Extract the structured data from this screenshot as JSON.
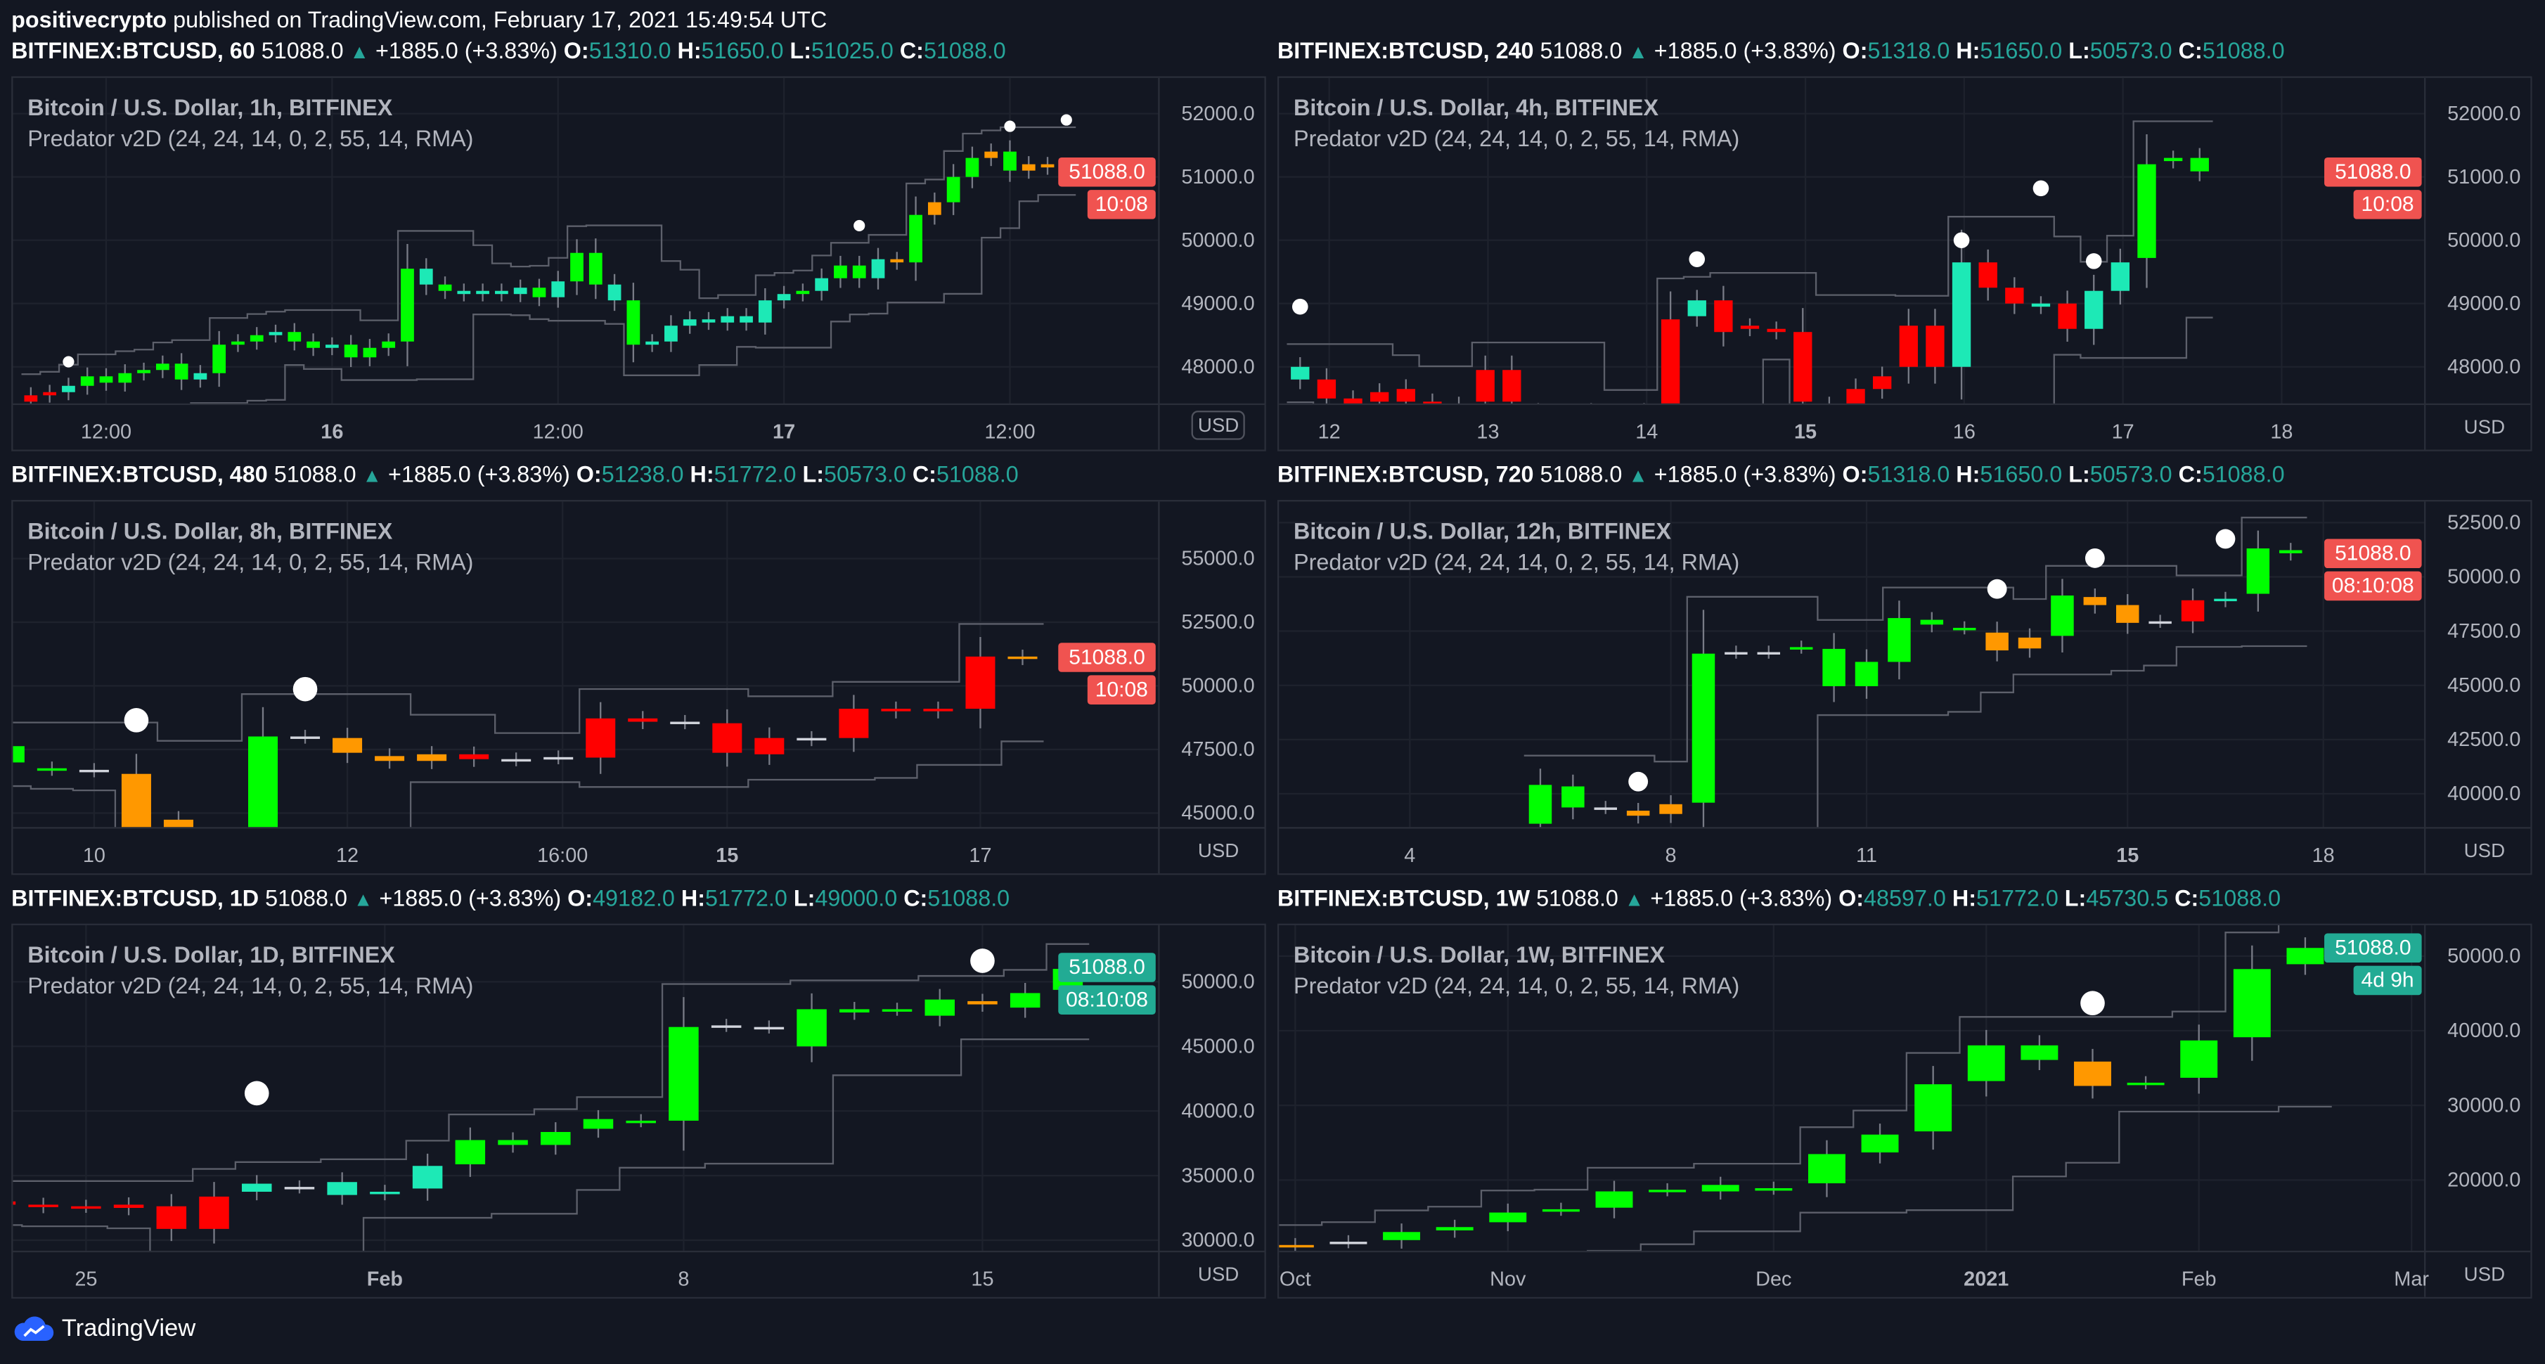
{
  "header": {
    "user": "positivecrypto",
    "published": " published on TradingView.com, February 17, 2021 15:49:54 UTC"
  },
  "footer": {
    "brand": "TradingView"
  },
  "colors": {
    "g": "#00ff00",
    "t": "#1de9b6",
    "o": "#ff9800",
    "r": "#ff0000",
    "w": "#d1d4dc",
    "up": "#26a69a",
    "badge_red": "#f05350",
    "badge_teal": "#22ab94"
  },
  "charts": [
    {
      "symbol": "BITFINEX:BTCUSD, 60",
      "last": "51088.0",
      "change": "+1885.0 (+3.83%)",
      "o": "51310.0",
      "h": "51650.0",
      "l": "51025.0",
      "c": "51088.0",
      "title": "Bitcoin / U.S. Dollar, 1h, BITFINEX",
      "indicator": "Predator v2D (24, 24, 14, 0, 2, 55, 14, RMA)",
      "unit": "USD",
      "price_label": "51088.0",
      "countdown": "10:08",
      "badge": "red",
      "last_price": 51088,
      "ylim": [
        47410,
        52564
      ],
      "y_ticks": [
        "48000.0",
        "49000.0",
        "50000.0",
        "51000.0",
        "52000.0"
      ],
      "x_ticks": [
        {
          "idx": 4,
          "label": "12:00"
        },
        {
          "idx": 16,
          "label": "16",
          "bold": true
        },
        {
          "idx": 28,
          "label": "12:00"
        },
        {
          "idx": 40,
          "label": "17",
          "bold": true
        },
        {
          "idx": 52,
          "label": "12:00"
        }
      ],
      "first_open": 47450,
      "closes": [
        47550,
        47600,
        47700,
        47850,
        47750,
        47900,
        47950,
        48050,
        47800,
        47900,
        48350,
        48400,
        48500,
        48550,
        48400,
        48300,
        48350,
        48150,
        48300,
        48400,
        49550,
        49300,
        49200,
        49150,
        49200,
        49150,
        49250,
        49100,
        49350,
        49800,
        49300,
        49050,
        48350,
        48400,
        48650,
        48750,
        48700,
        48800,
        48700,
        49050,
        49150,
        49200,
        49400,
        49600,
        49400,
        49700,
        49650,
        50400,
        50600,
        51000,
        51300,
        51400,
        51100,
        51200,
        51150,
        51088
      ],
      "close_colors": "rrtggggggtgggtggtggggtgttttgtggtgttttttttgtggtogoggogoooo",
      "dots": [
        [
          2,
          48080
        ],
        [
          44,
          50230
        ],
        [
          52,
          51800
        ],
        [
          55,
          51900
        ]
      ]
    },
    {
      "symbol": "BITFINEX:BTCUSD, 240",
      "last": "51088.0",
      "change": "+1885.0 (+3.83%)",
      "o": "51318.0",
      "h": "51650.0",
      "l": "50573.0",
      "c": "51088.0",
      "title": "Bitcoin / U.S. Dollar, 4h, BITFINEX",
      "indicator": "Predator v2D (24, 24, 14, 0, 2, 55, 14, RMA)",
      "unit": "USD",
      "price_label": "51088.0",
      "countdown": "10:08",
      "badge": "red",
      "last_price": 51088,
      "ylim": [
        47410,
        52564
      ],
      "y_ticks": [
        "48000.0",
        "49000.0",
        "50000.0",
        "51000.0",
        "52000.0"
      ],
      "x_ticks": [
        {
          "idx": 1.1,
          "label": "12"
        },
        {
          "idx": 7.1,
          "label": "13"
        },
        {
          "idx": 13.1,
          "label": "14"
        },
        {
          "idx": 19.1,
          "label": "15",
          "bold": true
        },
        {
          "idx": 25.1,
          "label": "16"
        },
        {
          "idx": 31.1,
          "label": "17"
        },
        {
          "idx": 37.1,
          "label": "18"
        }
      ],
      "candles": [
        [
          47800,
          48000,
          "t"
        ],
        [
          47800,
          47500,
          "r"
        ],
        [
          47500,
          47400,
          "r"
        ],
        [
          47600,
          47450,
          "r"
        ],
        [
          47650,
          47450,
          "r"
        ],
        [
          47450,
          47350,
          "r"
        ],
        [
          47400,
          47300,
          "r"
        ],
        [
          47950,
          47450,
          "r"
        ],
        [
          47950,
          47450,
          "r"
        ],
        [
          47300,
          47200,
          "r"
        ],
        [
          47250,
          47150,
          "r"
        ],
        [
          47300,
          47200,
          "r"
        ],
        [
          47250,
          47150,
          "r"
        ],
        [
          47300,
          47200,
          "r"
        ],
        [
          48750,
          47400,
          "r"
        ],
        [
          49050,
          48800,
          "t"
        ],
        [
          49050,
          48550,
          "r"
        ],
        [
          48650,
          48600,
          "r"
        ],
        [
          48600,
          48550,
          "r"
        ],
        [
          48550,
          47450,
          "r"
        ],
        [
          47400,
          47300,
          "r"
        ],
        [
          47650,
          47400,
          "r"
        ],
        [
          47850,
          47650,
          "r"
        ],
        [
          48650,
          48000,
          "r"
        ],
        [
          48650,
          48000,
          "r"
        ],
        [
          48000,
          49650,
          "t"
        ],
        [
          49650,
          49250,
          "r"
        ],
        [
          49250,
          49000,
          "r"
        ],
        [
          49000,
          48950,
          "t"
        ],
        [
          49000,
          48600,
          "r"
        ],
        [
          48600,
          49200,
          "t"
        ],
        [
          49200,
          49650,
          "t"
        ],
        [
          49720,
          51200,
          "g"
        ],
        [
          51250,
          51300,
          "g"
        ],
        [
          51300,
          51088,
          "g"
        ]
      ],
      "dots": [
        [
          0,
          48950
        ],
        [
          15,
          49700
        ],
        [
          25,
          50000
        ],
        [
          28,
          50820
        ],
        [
          30,
          49670
        ]
      ]
    },
    {
      "symbol": "BITFINEX:BTCUSD, 480",
      "last": "51088.0",
      "change": "+1885.0 (+3.83%)",
      "o": "51238.0",
      "h": "51772.0",
      "l": "50573.0",
      "c": "51088.0",
      "title": "Bitcoin / U.S. Dollar, 8h, BITFINEX",
      "indicator": "Predator v2D (24, 24, 14, 0, 2, 55, 14, RMA)",
      "unit": "USD",
      "price_label": "51088.0",
      "countdown": "10:08",
      "badge": "red",
      "last_price": 51088,
      "ylim": [
        44420,
        57240
      ],
      "y_ticks": [
        "45000.0",
        "47500.0",
        "50000.0",
        "52500.0",
        "55000.0"
      ],
      "x_ticks": [
        {
          "idx": 2,
          "label": "10"
        },
        {
          "idx": 8,
          "label": "12"
        },
        {
          "idx": 13.1,
          "label": "16:00"
        },
        {
          "idx": 17,
          "label": "15",
          "bold": true
        },
        {
          "idx": 23,
          "label": "17"
        }
      ],
      "candles": [
        [
          46990,
          47630,
          "g"
        ],
        [
          46760,
          46730,
          "g"
        ],
        [
          46700,
          46670,
          "w"
        ],
        [
          46540,
          44420,
          "o"
        ],
        [
          44740,
          44420,
          "o"
        ],
        null,
        [
          44420,
          48010,
          "g"
        ],
        [
          48010,
          47990,
          "w"
        ],
        [
          47950,
          47370,
          "o"
        ],
        [
          47240,
          47050,
          "o"
        ],
        [
          47050,
          47310,
          "o"
        ],
        [
          47310,
          47120,
          "r"
        ],
        [
          47120,
          47100,
          "w"
        ],
        [
          47180,
          47200,
          "w"
        ],
        [
          47180,
          48720,
          "r"
        ],
        [
          48720,
          48590,
          "r"
        ],
        [
          48590,
          48560,
          "w"
        ],
        [
          48530,
          47370,
          "r"
        ],
        [
          47310,
          47950,
          "r"
        ],
        [
          47950,
          47900,
          "w"
        ],
        [
          47950,
          49100,
          "r"
        ],
        [
          49100,
          49000,
          "r"
        ],
        [
          49000,
          49100,
          "r"
        ],
        [
          49100,
          51150,
          "r"
        ],
        [
          51150,
          51088,
          "o"
        ]
      ],
      "dots": [
        [
          3,
          48650
        ],
        [
          7,
          49870
        ]
      ]
    },
    {
      "symbol": "BITFINEX:BTCUSD, 720",
      "last": "51088.0",
      "change": "+1885.0 (+3.83%)",
      "o": "51318.0",
      "h": "51650.0",
      "l": "50573.0",
      "c": "51088.0",
      "title": "Bitcoin / U.S. Dollar, 12h, BITFINEX",
      "indicator": "Predator v2D (24, 24, 14, 0, 2, 55, 14, RMA)",
      "unit": "USD",
      "price_label": "51088.0",
      "countdown": "08:10:08",
      "badge": "red",
      "last_price": 51088,
      "ylim": [
        38430,
        53470
      ],
      "y_ticks": [
        "40000.0",
        "42500.0",
        "45000.0",
        "47500.0",
        "50000.0",
        "52500.0"
      ],
      "x_ticks": [
        {
          "idx": -4,
          "label": "4"
        },
        {
          "idx": 4,
          "label": "8"
        },
        {
          "idx": 10,
          "label": "11"
        },
        {
          "idx": 18,
          "label": "15",
          "bold": true
        },
        {
          "idx": 24,
          "label": "18"
        }
      ],
      "candles": [
        [
          38620,
          40410,
          "g"
        ],
        [
          39370,
          40340,
          "g"
        ],
        [
          39370,
          39370,
          "w"
        ],
        [
          38990,
          39220,
          "o"
        ],
        [
          39070,
          39520,
          "o"
        ],
        [
          39590,
          46460,
          "g"
        ],
        [
          46530,
          46530,
          "w"
        ],
        [
          46530,
          46530,
          "w"
        ],
        [
          46760,
          46760,
          "g"
        ],
        [
          44960,
          46680,
          "g"
        ],
        [
          44960,
          46080,
          "g"
        ],
        [
          46080,
          48100,
          "g"
        ],
        [
          47800,
          48020,
          "g"
        ],
        [
          47650,
          47650,
          "g"
        ],
        [
          47430,
          46610,
          "o"
        ],
        [
          47200,
          46700,
          "o"
        ],
        [
          47280,
          49140,
          "g"
        ],
        [
          49070,
          48700,
          "o"
        ],
        [
          48700,
          47880,
          "o"
        ],
        [
          47950,
          47950,
          "w"
        ],
        [
          47950,
          48920,
          "r"
        ],
        [
          48920,
          48990,
          "t"
        ],
        [
          49220,
          51310,
          "g"
        ],
        [
          51230,
          51088,
          "g"
        ]
      ],
      "dots": [
        [
          3,
          40560
        ],
        [
          14,
          49440
        ],
        [
          17,
          50860
        ],
        [
          21,
          51750
        ]
      ]
    },
    {
      "symbol": "BITFINEX:BTCUSD, 1D",
      "last": "51088.0",
      "change": "+1885.0 (+3.83%)",
      "o": "49182.0",
      "h": "51772.0",
      "l": "49000.0",
      "c": "51088.0",
      "title": "Bitcoin / U.S. Dollar, 1D, BITFINEX",
      "indicator": "Predator v2D (24, 24, 14, 0, 2, 55, 14, RMA)",
      "unit": "USD",
      "price_label": "51088.0",
      "countdown": "08:10:08",
      "badge": "teal",
      "last_price": 51088,
      "ylim": [
        29125,
        54375
      ],
      "y_ticks": [
        "30000.0",
        "35000.0",
        "40000.0",
        "45000.0",
        "50000.0"
      ],
      "x_ticks": [
        {
          "idx": 2,
          "label": "25"
        },
        {
          "idx": 9,
          "label": "Feb",
          "bold": true
        },
        {
          "idx": 16,
          "label": "8"
        },
        {
          "idx": 23,
          "label": "15"
        }
      ],
      "candles": [
        [
          33000,
          32750,
          "r"
        ],
        [
          32750,
          32625,
          "r"
        ],
        [
          32625,
          32625,
          "r"
        ],
        [
          32750,
          32500,
          "r"
        ],
        [
          32625,
          30875,
          "r"
        ],
        [
          30875,
          33375,
          "r"
        ],
        [
          33750,
          34375,
          "t"
        ],
        [
          34125,
          34125,
          "w"
        ],
        [
          33500,
          34500,
          "t"
        ],
        [
          33625,
          33750,
          "t"
        ],
        [
          34000,
          35750,
          "t"
        ],
        [
          35875,
          37750,
          "g"
        ],
        [
          37375,
          37750,
          "g"
        ],
        [
          37375,
          38375,
          "g"
        ],
        [
          38625,
          39375,
          "g"
        ],
        [
          39250,
          39250,
          "g"
        ],
        [
          39250,
          46500,
          "g"
        ],
        [
          46625,
          46625,
          "w"
        ],
        [
          46500,
          46500,
          "w"
        ],
        [
          45000,
          47875,
          "g"
        ],
        [
          47625,
          47875,
          "g"
        ],
        [
          47875,
          47875,
          "g"
        ],
        [
          47375,
          48625,
          "g"
        ],
        [
          48500,
          48250,
          "o"
        ],
        [
          48000,
          49125,
          "g"
        ],
        [
          49375,
          51000,
          "g"
        ]
      ],
      "dots": [
        [
          6,
          41375
        ],
        [
          23,
          51625
        ]
      ]
    },
    {
      "symbol": "BITFINEX:BTCUSD, 1W",
      "last": "51088.0",
      "change": "+1885.0 (+3.83%)",
      "o": "48597.0",
      "h": "51772.0",
      "l": "45730.5",
      "c": "51088.0",
      "title": "Bitcoin / U.S. Dollar, 1W, BITFINEX",
      "indicator": "Predator v2D (24, 24, 14, 0, 2, 55, 14, RMA)",
      "unit": "USD",
      "price_label": "51088.0",
      "countdown": "4d 9h",
      "badge": "teal",
      "last_price": 51088,
      "ylim": [
        10430,
        54130
      ],
      "y_ticks": [
        "20000.0",
        "30000.0",
        "40000.0",
        "50000.0"
      ],
      "x_ticks": [
        {
          "idx": 0,
          "label": "Oct"
        },
        {
          "idx": 4,
          "label": "Nov"
        },
        {
          "idx": 9,
          "label": "Dec"
        },
        {
          "idx": 13,
          "label": "2021",
          "bold": true
        },
        {
          "idx": 17,
          "label": "Feb"
        },
        {
          "idx": 21,
          "label": "Mar"
        }
      ],
      "candles": [
        [
          11300,
          11090,
          "o"
        ],
        [
          11740,
          11740,
          "w"
        ],
        [
          11960,
          13040,
          "g"
        ],
        [
          13260,
          13700,
          "g"
        ],
        [
          14350,
          15650,
          "g"
        ],
        [
          16090,
          16090,
          "g"
        ],
        [
          16300,
          18480,
          "g"
        ],
        [
          18700,
          18700,
          "g"
        ],
        [
          18480,
          19350,
          "g"
        ],
        [
          18910,
          18910,
          "g"
        ],
        [
          19570,
          23480,
          "g"
        ],
        [
          23700,
          26090,
          "g"
        ],
        [
          26520,
          32830,
          "g"
        ],
        [
          33260,
          38040,
          "g"
        ],
        [
          36090,
          38040,
          "g"
        ],
        [
          35870,
          32610,
          "o"
        ],
        [
          33040,
          33040,
          "g"
        ],
        [
          33700,
          38700,
          "g"
        ],
        [
          39130,
          48260,
          "g"
        ],
        [
          48910,
          51090,
          "g"
        ]
      ],
      "dots": [
        [
          15,
          43700
        ]
      ]
    }
  ]
}
